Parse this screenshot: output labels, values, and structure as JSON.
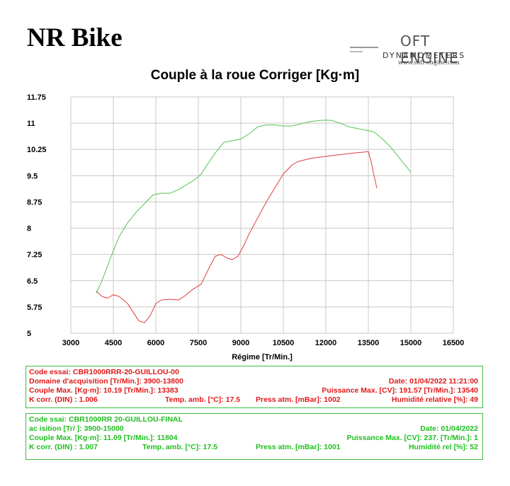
{
  "page_title": "NR Bike",
  "logo": {
    "main": "OFT ENGINE",
    "sub": "DYNAMOMETERS",
    "url": "www.soft-engine.com"
  },
  "colors": {
    "run1": "#e23a3a",
    "run2": "#52c452",
    "grid": "#c8c8c8",
    "box": "#3dbb3d"
  },
  "chart_data": {
    "type": "line",
    "title": "Couple à la roue Corriger [Kg·m]",
    "xlabel": "Régime [Tr/Min.]",
    "ylabel": "",
    "xlim": [
      3000,
      16500
    ],
    "ylim": [
      5,
      11.75
    ],
    "x_ticks": [
      "3000",
      "4500",
      "6000",
      "7500",
      "9000",
      "10500",
      "12000",
      "13500",
      "15000",
      "16500"
    ],
    "y_ticks": [
      "5",
      "5.75",
      "6.5",
      "7.25",
      "8",
      "8.75",
      "9.5",
      "10.25",
      "11",
      "11.75"
    ],
    "grid": true,
    "legend": "none",
    "series": [
      {
        "color": "#e23a3a",
        "x": [
          3900,
          4100,
          4300,
          4500,
          4700,
          5000,
          5200,
          5400,
          5600,
          5800,
          6000,
          6200,
          6500,
          6800,
          7000,
          7300,
          7600,
          7900,
          8100,
          8300,
          8500,
          8700,
          8900,
          9100,
          9300,
          9600,
          9900,
          10200,
          10500,
          10800,
          11000,
          11500,
          12000,
          12500,
          13000,
          13400,
          13500,
          13600,
          13700,
          13800
        ],
        "y": [
          6.2,
          6.05,
          6.0,
          6.1,
          6.05,
          5.85,
          5.6,
          5.35,
          5.3,
          5.5,
          5.85,
          5.95,
          5.97,
          5.95,
          6.05,
          6.25,
          6.4,
          6.9,
          7.2,
          7.25,
          7.15,
          7.1,
          7.2,
          7.5,
          7.85,
          8.3,
          8.75,
          9.15,
          9.55,
          9.8,
          9.9,
          10.0,
          10.05,
          10.1,
          10.15,
          10.18,
          10.19,
          9.9,
          9.5,
          9.15
        ]
      },
      {
        "color": "#52c452",
        "x": [
          3900,
          4100,
          4400,
          4700,
          5000,
          5300,
          5600,
          5900,
          6200,
          6500,
          6800,
          7100,
          7400,
          7600,
          7800,
          8100,
          8400,
          8700,
          9000,
          9300,
          9600,
          9900,
          10200,
          10500,
          10800,
          11200,
          11500,
          11800,
          12000,
          12200,
          12500,
          12800,
          13100,
          13400,
          13700,
          14000,
          14300,
          14600,
          14900,
          15000
        ],
        "y": [
          6.15,
          6.5,
          7.15,
          7.75,
          8.15,
          8.45,
          8.7,
          8.95,
          9.0,
          9.0,
          9.1,
          9.25,
          9.4,
          9.55,
          9.8,
          10.15,
          10.45,
          10.5,
          10.55,
          10.7,
          10.9,
          10.95,
          10.95,
          10.92,
          10.92,
          11.0,
          11.05,
          11.08,
          11.09,
          11.08,
          11.0,
          10.9,
          10.85,
          10.8,
          10.75,
          10.55,
          10.3,
          10.0,
          9.7,
          9.6
        ]
      }
    ]
  },
  "run1": {
    "l1a": "Code essai: CBR1000RRR-20-GUILLOU-00",
    "l2a": "Domaine d'acquisition [Tr/Min.]: 3900-13800",
    "l2b": "Date: 01/04/2022   11:21:00",
    "l3a": "Couple Max. [Kg·m]: 10.19   [Tr/Min.]: 13383",
    "l3b": "Puissance Max. [CV]: 191.57   [Tr/Min.]: 13540",
    "l4a": "K corr. (DIN) : 1.006",
    "l4b": "Temp. amb. [°C]: 17.5",
    "l4c": "Press atm. [mBar]: 1002",
    "l4d": "Humidité relative [%]: 49"
  },
  "run2": {
    "l1a": "Code   ssai: CBR1000RR  20-GUILLOU-FINAL",
    "l2a": "          ac  isition [Tr/  ]: 3900-15000",
    "l2b": "Date: 01/04/2022",
    "l3a": "Couple Max. [Kg·m]: 11.09   [Tr/Min.]: 11804",
    "l3b": "Puissance Max. [CV]: 237.  [Tr/Min.]: 1",
    "l4a": "K corr. (DIN) : 1.007",
    "l4b": "Temp. amb. [°C]: 17.5",
    "l4c": "Press atm. [mBar]: 1001",
    "l4d": "Humidité rel    [%]: 52"
  }
}
